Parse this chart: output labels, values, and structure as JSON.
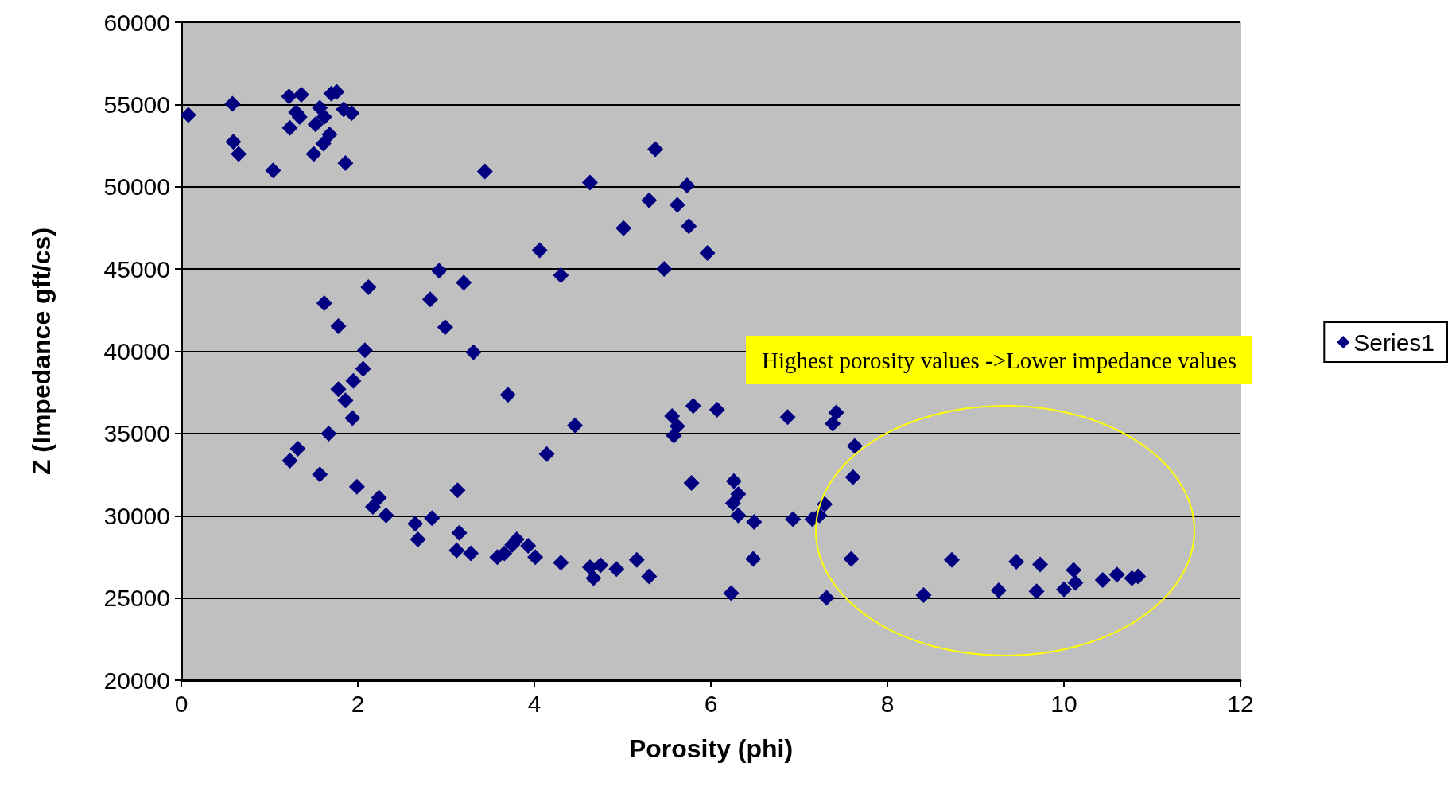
{
  "chart_data": {
    "type": "scatter",
    "xlabel": "Porosity (phi)",
    "ylabel": "Z (Impedance gft/cs)",
    "xlim": [
      0,
      12
    ],
    "xticks": [
      0,
      2,
      4,
      6,
      8,
      10,
      12
    ],
    "ylim": [
      20000,
      60000
    ],
    "yticks": [
      20000,
      25000,
      30000,
      35000,
      40000,
      45000,
      50000,
      55000,
      60000
    ],
    "grid": "y",
    "legend": "right",
    "marker": "diamond",
    "annotations": [
      "Highest porosity values ->Lower impedance values"
    ],
    "series": [
      {
        "name": "Series1",
        "color": "#000080",
        "x": [
          0.08,
          0.58,
          0.59,
          0.65,
          1.04,
          1.22,
          1.23,
          1.3,
          1.36,
          1.34,
          1.52,
          1.57,
          1.62,
          1.61,
          1.68,
          1.5,
          1.7,
          1.76,
          1.86,
          1.84,
          1.93,
          3.44,
          4.63,
          5.37,
          5.3,
          5.62,
          5.73,
          5.01,
          5.75,
          5.96,
          5.47,
          4.06,
          4.3,
          2.92,
          3.2,
          2.12,
          1.62,
          2.82,
          1.78,
          2.99,
          2.08,
          3.31,
          2.06,
          1.95,
          1.78,
          1.86,
          1.94,
          1.67,
          3.7,
          4.46,
          4.14,
          5.56,
          5.8,
          5.58,
          5.62,
          6.07,
          6.87,
          7.42,
          7.38,
          7.63,
          7.61,
          5.78,
          6.26,
          6.31,
          6.25,
          6.31,
          6.49,
          6.93,
          7.15,
          7.23,
          7.29,
          1.32,
          1.23,
          1.57,
          3.13,
          1.99,
          2.24,
          2.17,
          2.32,
          2.65,
          2.68,
          2.84,
          3.15,
          3.12,
          3.28,
          3.58,
          3.66,
          3.75,
          3.8,
          3.93,
          4.01,
          4.3,
          4.63,
          4.67,
          4.75,
          4.93,
          5.16,
          5.3,
          6.23,
          6.48,
          7.31,
          7.59,
          8.41,
          8.73,
          9.26,
          9.46,
          9.73,
          9.69,
          10.0,
          10.11,
          10.13,
          10.44,
          10.6,
          10.77,
          10.84
        ],
        "values": [
          54370,
          55040,
          52730,
          52000,
          50990,
          55490,
          53580,
          54540,
          55600,
          54250,
          53800,
          54800,
          54250,
          52620,
          53180,
          52000,
          55660,
          55770,
          51440,
          54700,
          54480,
          50930,
          50250,
          52280,
          49180,
          48900,
          50080,
          47490,
          47610,
          45970,
          45010,
          46140,
          44620,
          44900,
          44170,
          43890,
          42930,
          43150,
          41520,
          41460,
          40060,
          39940,
          38930,
          38200,
          37690,
          37010,
          35940,
          34990,
          37350,
          35490,
          33750,
          36060,
          36680,
          34870,
          35440,
          36450,
          36000,
          36280,
          35600,
          34250,
          32340,
          32000,
          32110,
          31320,
          30760,
          30030,
          29630,
          29800,
          29800,
          30030,
          30700,
          34080,
          33350,
          32510,
          31550,
          31770,
          31100,
          30540,
          30030,
          29520,
          28560,
          29860,
          28960,
          27890,
          27720,
          27490,
          27720,
          28230,
          28560,
          28170,
          27490,
          27150,
          26870,
          26200,
          26990,
          26760,
          27320,
          26310,
          25300,
          27380,
          25020,
          27380,
          25180,
          27320,
          25470,
          27210,
          27040,
          25410,
          25520,
          26700,
          25920,
          26090,
          26420,
          26200,
          26310
        ]
      }
    ]
  }
}
